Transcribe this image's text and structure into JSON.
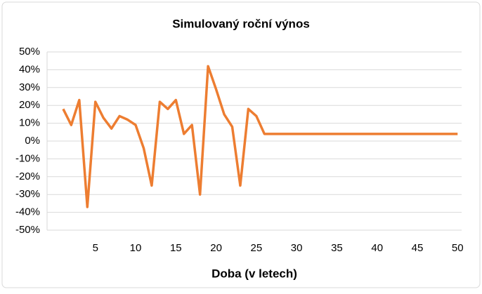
{
  "chart_data": {
    "type": "line",
    "title": "Simulovaný roční výnos",
    "x_label": "Doba (v letech)",
    "x": [
      1,
      2,
      3,
      4,
      5,
      6,
      7,
      8,
      9,
      10,
      11,
      12,
      13,
      14,
      15,
      16,
      17,
      18,
      19,
      20,
      21,
      22,
      23,
      24,
      25,
      26,
      27,
      28,
      29,
      30,
      31,
      32,
      33,
      34,
      35,
      36,
      37,
      38,
      39,
      40,
      41,
      42,
      43,
      44,
      45,
      46,
      47,
      48,
      49,
      50
    ],
    "series": [
      {
        "color": "#ed7d31",
        "values": [
          18,
          9,
          23,
          -37,
          22,
          13,
          7,
          14,
          12,
          9,
          -4,
          -25,
          22,
          18,
          23,
          4,
          9,
          -30,
          42,
          29,
          15,
          8,
          -25,
          18,
          14,
          4,
          4,
          4,
          4,
          4,
          4,
          4,
          4,
          4,
          4,
          4,
          4,
          4,
          4,
          4,
          4,
          4,
          4,
          4,
          4,
          4,
          4,
          4,
          4,
          4
        ]
      }
    ],
    "xlim": [
      -1,
      50.5
    ],
    "xticks": [
      5,
      10,
      15,
      20,
      25,
      30,
      35,
      40,
      45,
      50
    ],
    "ylim": [
      -50,
      50
    ],
    "yticks": [
      {
        "value": -50,
        "label": "-50%"
      },
      {
        "value": -40,
        "label": "-40%"
      },
      {
        "value": -30,
        "label": "-30%"
      },
      {
        "value": -20,
        "label": "-20%"
      },
      {
        "value": -10,
        "label": "-10%"
      },
      {
        "value": 0,
        "label": "0%"
      },
      {
        "value": 10,
        "label": "10%"
      },
      {
        "value": 20,
        "label": "20%"
      },
      {
        "value": 30,
        "label": "30%"
      },
      {
        "value": 40,
        "label": "40%"
      },
      {
        "value": 50,
        "label": "50%"
      }
    ],
    "grid": true
  }
}
